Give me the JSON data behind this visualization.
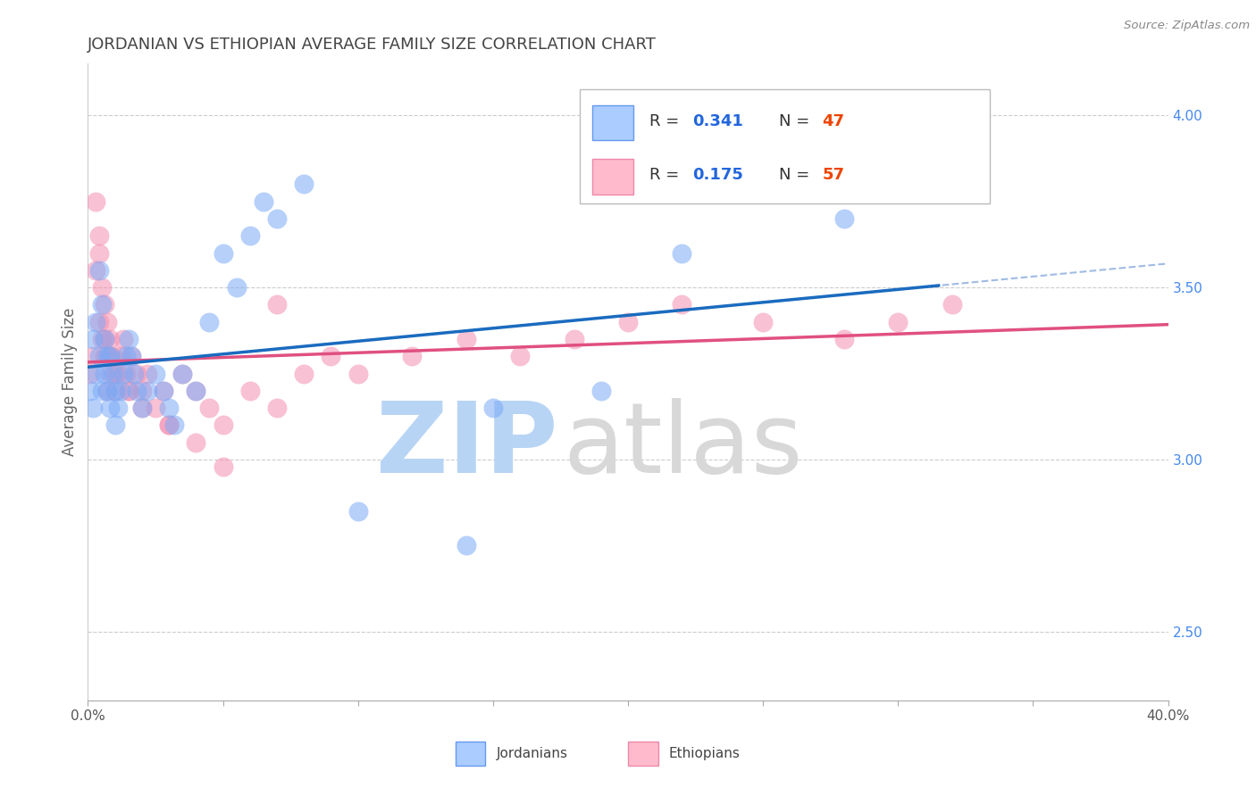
{
  "title": "JORDANIAN VS ETHIOPIAN AVERAGE FAMILY SIZE CORRELATION CHART",
  "source": "Source: ZipAtlas.com",
  "ylabel": "Average Family Size",
  "xlim": [
    0.0,
    0.4
  ],
  "ylim": [
    2.3,
    4.15
  ],
  "right_yticks": [
    2.5,
    3.0,
    3.5,
    4.0
  ],
  "xtick_vals": [
    0.0,
    0.05,
    0.1,
    0.15,
    0.2,
    0.25,
    0.3,
    0.35,
    0.4
  ],
  "xtick_labels_show": {
    "0.0": "0.0%",
    "0.40": "40.0%"
  },
  "blue_color_scatter": "#7baaf7",
  "pink_color_scatter": "#f48fb1",
  "blue_color_line": "#1a6bbf",
  "pink_color_line": "#e05080",
  "blue_R": "0.341",
  "blue_N": "47",
  "pink_R": "0.175",
  "pink_N": "57",
  "legend_label_blue": "Jordanians",
  "legend_label_pink": "Ethiopians",
  "background_color": "#ffffff",
  "grid_color": "#cccccc",
  "watermark_zip_color": "#cce0ff",
  "watermark_atlas_color": "#cccccc",
  "title_color": "#444444",
  "source_color": "#888888",
  "blue_x": [
    0.001,
    0.002,
    0.002,
    0.003,
    0.003,
    0.004,
    0.004,
    0.005,
    0.005,
    0.006,
    0.006,
    0.007,
    0.007,
    0.008,
    0.008,
    0.009,
    0.01,
    0.01,
    0.011,
    0.012,
    0.013,
    0.014,
    0.015,
    0.016,
    0.017,
    0.018,
    0.02,
    0.022,
    0.025,
    0.028,
    0.03,
    0.032,
    0.035,
    0.04,
    0.045,
    0.05,
    0.055,
    0.06,
    0.065,
    0.07,
    0.08,
    0.1,
    0.14,
    0.19,
    0.22,
    0.28,
    0.15
  ],
  "blue_y": [
    3.2,
    3.15,
    3.35,
    3.25,
    3.4,
    3.3,
    3.55,
    3.45,
    3.2,
    3.35,
    3.25,
    3.3,
    3.2,
    3.15,
    3.3,
    3.25,
    3.2,
    3.1,
    3.15,
    3.2,
    3.25,
    3.3,
    3.35,
    3.3,
    3.25,
    3.2,
    3.15,
    3.2,
    3.25,
    3.2,
    3.15,
    3.1,
    3.25,
    3.2,
    3.4,
    3.6,
    3.5,
    3.65,
    3.75,
    3.7,
    3.8,
    2.85,
    2.75,
    3.2,
    3.6,
    3.7,
    3.15
  ],
  "pink_x": [
    0.001,
    0.002,
    0.003,
    0.003,
    0.004,
    0.004,
    0.005,
    0.005,
    0.006,
    0.006,
    0.007,
    0.007,
    0.008,
    0.008,
    0.009,
    0.01,
    0.011,
    0.012,
    0.013,
    0.014,
    0.015,
    0.016,
    0.018,
    0.02,
    0.022,
    0.025,
    0.028,
    0.03,
    0.035,
    0.04,
    0.045,
    0.05,
    0.06,
    0.07,
    0.08,
    0.09,
    0.1,
    0.12,
    0.14,
    0.16,
    0.18,
    0.2,
    0.22,
    0.25,
    0.28,
    0.3,
    0.32,
    0.004,
    0.006,
    0.008,
    0.01,
    0.015,
    0.02,
    0.03,
    0.04,
    0.05,
    0.07
  ],
  "pink_y": [
    3.25,
    3.3,
    3.75,
    3.55,
    3.6,
    3.65,
    3.5,
    3.35,
    3.3,
    3.45,
    3.4,
    3.2,
    3.25,
    3.35,
    3.3,
    3.2,
    3.25,
    3.3,
    3.35,
    3.25,
    3.2,
    3.3,
    3.25,
    3.2,
    3.25,
    3.15,
    3.2,
    3.1,
    3.25,
    3.2,
    3.15,
    3.1,
    3.2,
    3.15,
    3.25,
    3.3,
    3.25,
    3.3,
    3.35,
    3.3,
    3.35,
    3.4,
    3.45,
    3.4,
    3.35,
    3.4,
    3.45,
    3.4,
    3.35,
    3.3,
    3.25,
    3.2,
    3.15,
    3.1,
    3.05,
    2.98,
    3.45
  ]
}
